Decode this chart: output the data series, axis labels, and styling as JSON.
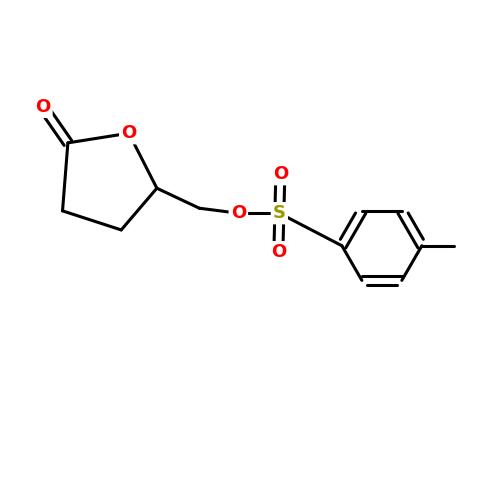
{
  "background_color": "#ffffff",
  "bond_color": "#000000",
  "oxygen_color": "#ff0000",
  "sulfur_color": "#999900",
  "line_width": 2.2,
  "figsize": [
    5.0,
    5.0
  ],
  "dpi": 100,
  "xlim": [
    0,
    10
  ],
  "ylim": [
    0,
    10
  ]
}
